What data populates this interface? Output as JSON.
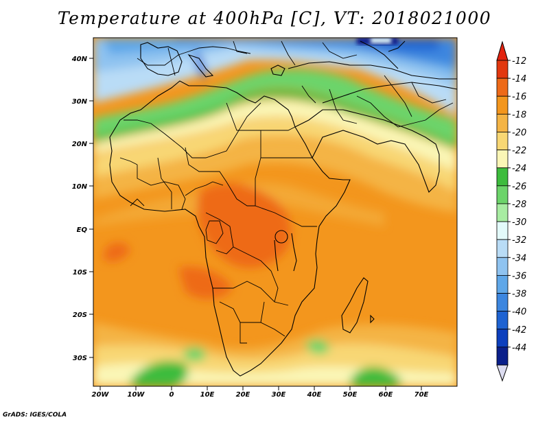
{
  "map": {
    "title": "Temperature at 400hPa [C], VT: 2018021000",
    "credit": "GrADS: IGES/COLA",
    "lon_labels": [
      "20W",
      "10W",
      "0",
      "10E",
      "20E",
      "30E",
      "40E",
      "50E",
      "60E",
      "70E"
    ],
    "lat_labels": [
      "40N",
      "30N",
      "20N",
      "10N",
      "EQ",
      "10S",
      "20S",
      "30S"
    ],
    "colorbar": {
      "labels": [
        "-12",
        "-14",
        "-16",
        "-18",
        "-20",
        "-22",
        "-24",
        "-26",
        "-28",
        "-30",
        "-32",
        "-34",
        "-36",
        "-38",
        "-40",
        "-42",
        "-44"
      ],
      "colors": [
        "#e2380f",
        "#ee6a18",
        "#f3961d",
        "#f4b445",
        "#f8d774",
        "#faf6b6",
        "#3dbc3d",
        "#6cd46a",
        "#a8eca2",
        "#e3fafa",
        "#b9dcf6",
        "#8fc3f0",
        "#5fa7e8",
        "#3c86df",
        "#1e63d2",
        "#0c3fbd",
        "#0a1f8a"
      ],
      "top_arrow_color": "#e2230f",
      "bottom_arrow_color": "#dcdcf0"
    }
  }
}
